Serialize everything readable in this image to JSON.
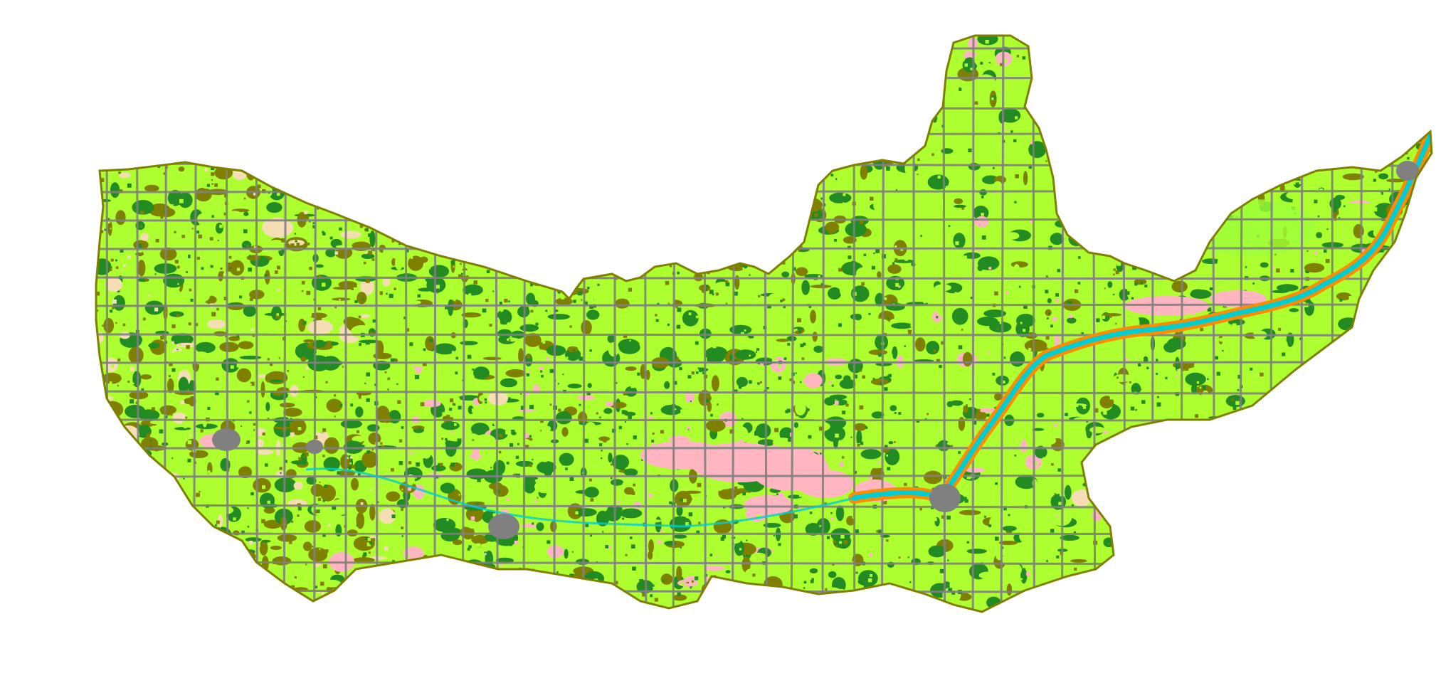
{
  "map": {
    "type": "land-cover-raster",
    "background_color": "#ffffff",
    "classes": [
      {
        "name": "forest",
        "color": "#228b22"
      },
      {
        "name": "cropland",
        "color": "#adff2f"
      },
      {
        "name": "pasture-grass",
        "color": "#808000"
      },
      {
        "name": "developed-roads",
        "color": "#808080"
      },
      {
        "name": "wetland-pink",
        "color": "#ffb6c1"
      },
      {
        "name": "barren-tan",
        "color": "#f5deb3"
      },
      {
        "name": "water",
        "color": "#00ced1"
      },
      {
        "name": "floodplain-orange",
        "color": "#ff8c00"
      }
    ]
  }
}
